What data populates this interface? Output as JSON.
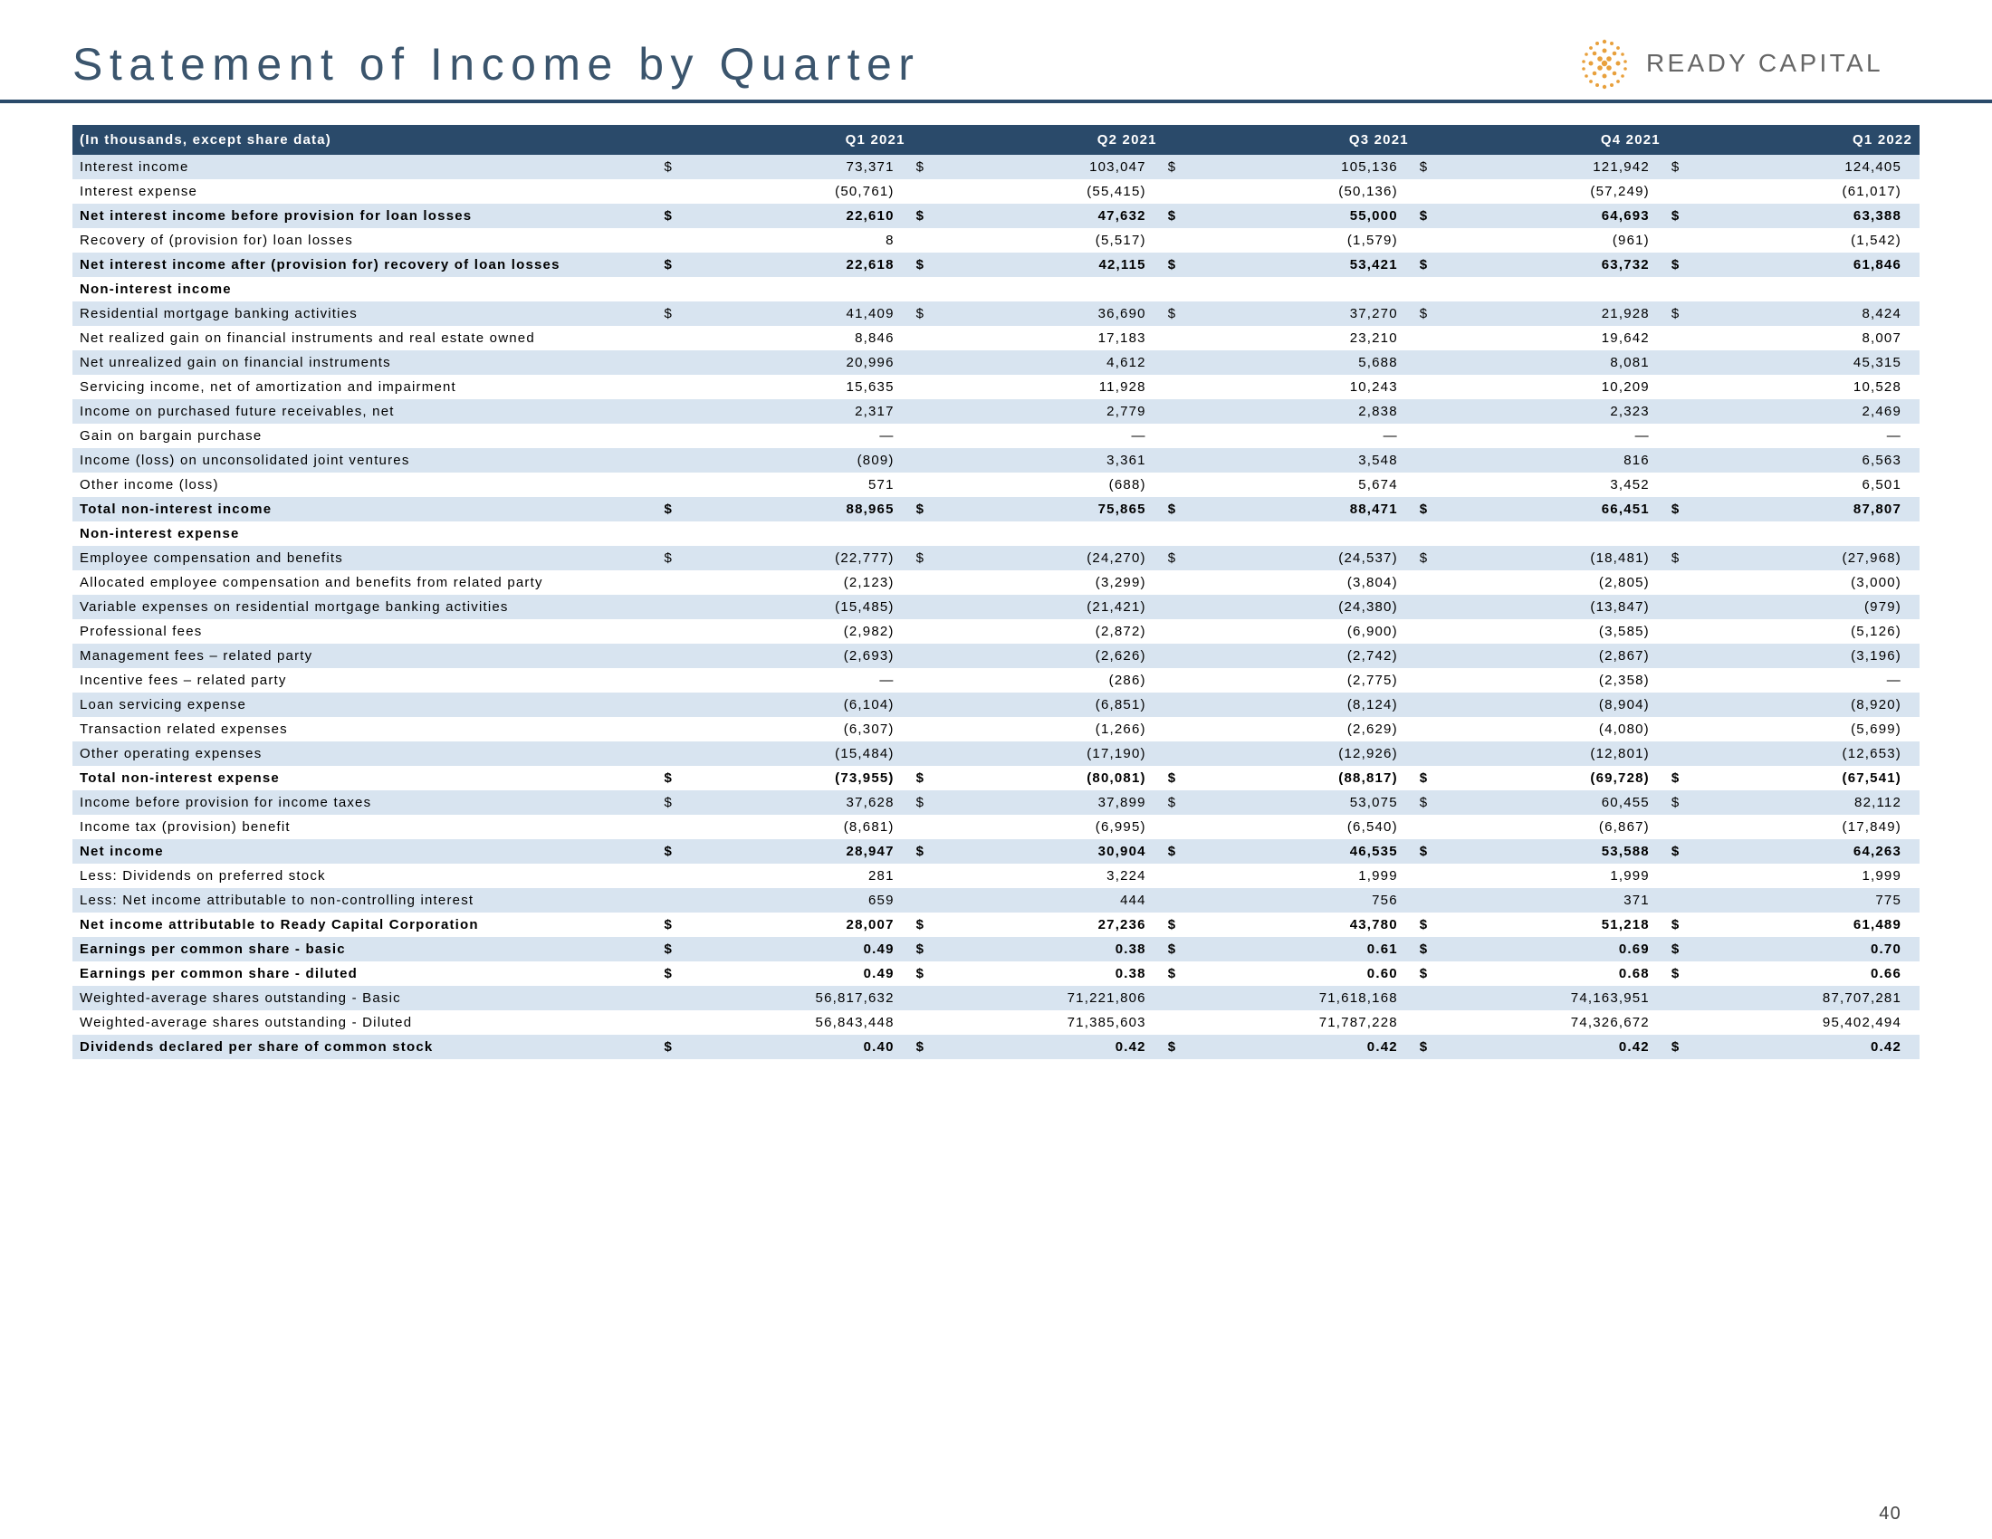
{
  "title": "Statement of Income by Quarter",
  "logo_text": "READY CAPITAL",
  "logo_color": "#e8a03c",
  "header_bg": "#2a4a6a",
  "alt_row_bg": "#d8e4f0",
  "page_number": "40",
  "table_header_label": "(In thousands, except share data)",
  "periods": [
    "Q1 2021",
    "Q2 2021",
    "Q3 2021",
    "Q4 2021",
    "Q1 2022"
  ],
  "rows": [
    {
      "label": "Interest income",
      "ds": true,
      "alt": true,
      "v": [
        "73,371",
        "103,047",
        "105,136",
        "121,942",
        "124,405"
      ]
    },
    {
      "label": "Interest expense",
      "v": [
        "(50,761)",
        "(55,415)",
        "(50,136)",
        "(57,249)",
        "(61,017)"
      ]
    },
    {
      "label": "Net interest income before provision for loan losses",
      "ds": true,
      "alt": true,
      "bold": true,
      "v": [
        "22,610",
        "47,632",
        "55,000",
        "64,693",
        "63,388"
      ]
    },
    {
      "label": "Recovery of (provision for) loan losses",
      "v": [
        "8",
        "(5,517)",
        "(1,579)",
        "(961)",
        "(1,542)"
      ]
    },
    {
      "label": "Net interest income after (provision for) recovery of loan losses",
      "ds": true,
      "alt": true,
      "bold": true,
      "v": [
        "22,618",
        "42,115",
        "53,421",
        "63,732",
        "61,846"
      ]
    },
    {
      "label": "Non-interest income",
      "sec": true,
      "v": [
        "",
        "",
        "",
        "",
        ""
      ]
    },
    {
      "label": "Residential mortgage banking activities",
      "ds": true,
      "alt": true,
      "v": [
        "41,409",
        "36,690",
        "37,270",
        "21,928",
        "8,424"
      ]
    },
    {
      "label": "Net realized gain on financial instruments and real estate owned",
      "v": [
        "8,846",
        "17,183",
        "23,210",
        "19,642",
        "8,007"
      ]
    },
    {
      "label": "Net unrealized gain on financial instruments",
      "alt": true,
      "v": [
        "20,996",
        "4,612",
        "5,688",
        "8,081",
        "45,315"
      ]
    },
    {
      "label": "Servicing income, net of amortization and impairment",
      "v": [
        "15,635",
        "11,928",
        "10,243",
        "10,209",
        "10,528"
      ]
    },
    {
      "label": "Income on purchased future receivables, net",
      "alt": true,
      "v": [
        "2,317",
        "2,779",
        "2,838",
        "2,323",
        "2,469"
      ]
    },
    {
      "label": "Gain on bargain purchase",
      "v": [
        "—",
        "—",
        "—",
        "—",
        "—"
      ]
    },
    {
      "label": "Income (loss) on unconsolidated joint ventures",
      "alt": true,
      "v": [
        "(809)",
        "3,361",
        "3,548",
        "816",
        "6,563"
      ]
    },
    {
      "label": "Other income (loss)",
      "v": [
        "571",
        "(688)",
        "5,674",
        "3,452",
        "6,501"
      ]
    },
    {
      "label": "Total non-interest income",
      "ds": true,
      "alt": true,
      "bold": true,
      "v": [
        "88,965",
        "75,865",
        "88,471",
        "66,451",
        "87,807"
      ]
    },
    {
      "label": "Non-interest expense",
      "sec": true,
      "v": [
        "",
        "",
        "",
        "",
        ""
      ]
    },
    {
      "label": "Employee compensation and benefits",
      "ds": true,
      "alt": true,
      "v": [
        "(22,777)",
        "(24,270)",
        "(24,537)",
        "(18,481)",
        "(27,968)"
      ]
    },
    {
      "label": "Allocated employee compensation and benefits from related party",
      "v": [
        "(2,123)",
        "(3,299)",
        "(3,804)",
        "(2,805)",
        "(3,000)"
      ]
    },
    {
      "label": "Variable expenses on residential mortgage banking activities",
      "alt": true,
      "v": [
        "(15,485)",
        "(21,421)",
        "(24,380)",
        "(13,847)",
        "(979)"
      ]
    },
    {
      "label": "Professional fees",
      "v": [
        "(2,982)",
        "(2,872)",
        "(6,900)",
        "(3,585)",
        "(5,126)"
      ]
    },
    {
      "label": "Management fees – related party",
      "alt": true,
      "v": [
        "(2,693)",
        "(2,626)",
        "(2,742)",
        "(2,867)",
        "(3,196)"
      ]
    },
    {
      "label": "Incentive fees – related party",
      "v": [
        "—",
        "(286)",
        "(2,775)",
        "(2,358)",
        "—"
      ]
    },
    {
      "label": "Loan servicing expense",
      "alt": true,
      "v": [
        "(6,104)",
        "(6,851)",
        "(8,124)",
        "(8,904)",
        "(8,920)"
      ]
    },
    {
      "label": "Transaction related expenses",
      "v": [
        "(6,307)",
        "(1,266)",
        "(2,629)",
        "(4,080)",
        "(5,699)"
      ]
    },
    {
      "label": "Other operating expenses",
      "alt": true,
      "v": [
        "(15,484)",
        "(17,190)",
        "(12,926)",
        "(12,801)",
        "(12,653)"
      ]
    },
    {
      "label": "Total non-interest expense",
      "ds": true,
      "bold": true,
      "v": [
        "(73,955)",
        "(80,081)",
        "(88,817)",
        "(69,728)",
        "(67,541)"
      ]
    },
    {
      "label": "Income before provision for income taxes",
      "ds": true,
      "alt": true,
      "v": [
        "37,628",
        "37,899",
        "53,075",
        "60,455",
        "82,112"
      ]
    },
    {
      "label": "Income tax (provision) benefit",
      "v": [
        "(8,681)",
        "(6,995)",
        "(6,540)",
        "(6,867)",
        "(17,849)"
      ]
    },
    {
      "label": "Net income",
      "ds": true,
      "alt": true,
      "bold": true,
      "v": [
        "28,947",
        "30,904",
        "46,535",
        "53,588",
        "64,263"
      ]
    },
    {
      "label": "Less: Dividends on preferred stock",
      "v": [
        "281",
        "3,224",
        "1,999",
        "1,999",
        "1,999"
      ]
    },
    {
      "label": "Less: Net income attributable to non-controlling interest",
      "alt": true,
      "v": [
        "659",
        "444",
        "756",
        "371",
        "775"
      ]
    },
    {
      "label": "Net income attributable to Ready Capital Corporation",
      "ds": true,
      "bold": true,
      "v": [
        "28,007",
        "27,236",
        "43,780",
        "51,218",
        "61,489"
      ]
    },
    {
      "label": "Earnings per common share - basic",
      "ds": true,
      "alt": true,
      "bold": true,
      "v": [
        "0.49",
        "0.38",
        "0.61",
        "0.69",
        "0.70"
      ]
    },
    {
      "label": "Earnings per common share - diluted",
      "ds": true,
      "bold": true,
      "v": [
        "0.49",
        "0.38",
        "0.60",
        "0.68",
        "0.66"
      ]
    },
    {
      "label": "Weighted-average shares outstanding - Basic",
      "alt": true,
      "v": [
        "56,817,632",
        "71,221,806",
        "71,618,168",
        "74,163,951",
        "87,707,281"
      ]
    },
    {
      "label": "Weighted-average shares outstanding - Diluted",
      "v": [
        "56,843,448",
        "71,385,603",
        "71,787,228",
        "74,326,672",
        "95,402,494"
      ]
    },
    {
      "label": "Dividends declared per share of common stock",
      "ds": true,
      "alt": true,
      "bold": true,
      "v": [
        "0.40",
        "0.42",
        "0.42",
        "0.42",
        "0.42"
      ]
    }
  ]
}
